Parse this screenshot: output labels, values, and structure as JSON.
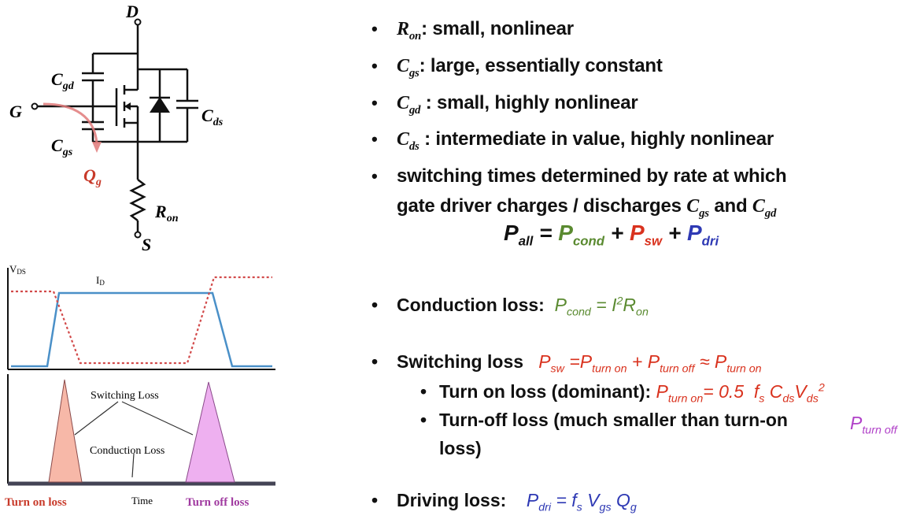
{
  "circuit": {
    "labels": {
      "drain": "D",
      "gate": "G",
      "source": "S",
      "cgd": "C",
      "cgd_sub": "gd",
      "cgs": "C",
      "cgs_sub": "gs",
      "cds": "C",
      "cds_sub": "ds",
      "qg": "Q",
      "qg_sub": "g",
      "ron": "R",
      "ron_sub": "on"
    }
  },
  "waveform": {
    "vds_label": "V",
    "vds_sub": "DS",
    "id_label": "I",
    "id_sub": "D",
    "switching_loss": "Switching Loss",
    "conduction_loss": "Conduction Loss",
    "time": "Time",
    "turn_on_loss": "Turn on loss",
    "turn_off_loss": "Turn off loss",
    "colors": {
      "vds": "#d24a4a",
      "id": "#4a90c8",
      "turn_on_fill": "#f7b8a8",
      "turn_off_fill": "#eeb0f0"
    }
  },
  "bullets": [
    {
      "sym": "R",
      "sub": "on",
      "text": ": small, nonlinear"
    },
    {
      "sym": "C",
      "sub": "gs",
      "text": ": large, essentially constant"
    },
    {
      "sym": "C",
      "sub": "gd",
      "text": " : small, highly nonlinear"
    },
    {
      "sym": "C",
      "sub": "ds",
      "text": " : intermediate in value, highly nonlinear"
    }
  ],
  "switching_times": {
    "line1": "switching times determined by rate at which",
    "line2": "gate driver charges / discharges ",
    "cgs": "C",
    "cgs_sub": "gs",
    "and": " and ",
    "cgd": "C",
    "cgd_sub": "gd"
  },
  "total": {
    "p_all": "P",
    "all_sub": "all",
    "eq": " = ",
    "p_cond": "P",
    "cond_sub": "cond",
    "plus1": " + ",
    "p_sw": "P",
    "sw_sub": "sw",
    "plus2": " + ",
    "p_dri": "P",
    "dri_sub": "dri"
  },
  "conduction": {
    "label": "Conduction loss:",
    "formula_p": "P",
    "formula_sub": "cond",
    "formula_eq": " = I",
    "formula_sup": "2",
    "formula_r": "R",
    "formula_rsub": "on"
  },
  "switching": {
    "label": "Switching loss",
    "p": "P",
    "sub": "sw",
    "eq": " =P",
    "t_on": "turn on",
    "plus": " + P",
    "t_off": "turn off",
    "approx": " ≈ P",
    "t_on2": "turn on"
  },
  "turn_on": {
    "label": "Turn on loss (dominant):",
    "p": "P",
    "sub": "turn on",
    "eq": "= 0.5 ",
    "fs": "f",
    "fs_sub": "s",
    "c": " C",
    "c_sub": "ds",
    "v": "V",
    "v_sub": "ds",
    "v_sup": "2"
  },
  "turn_off": {
    "line1": "Turn-off loss (much smaller than turn-on",
    "line2": "loss)",
    "p": "P",
    "sub": "turn off"
  },
  "driving": {
    "label": "Driving loss:",
    "p": "P",
    "sub": "dri",
    "eq": " = ",
    "fs": "f",
    "fs_sub": "s",
    "v": " V",
    "v_sub": "gs",
    "q": " Q",
    "q_sub": "g"
  }
}
